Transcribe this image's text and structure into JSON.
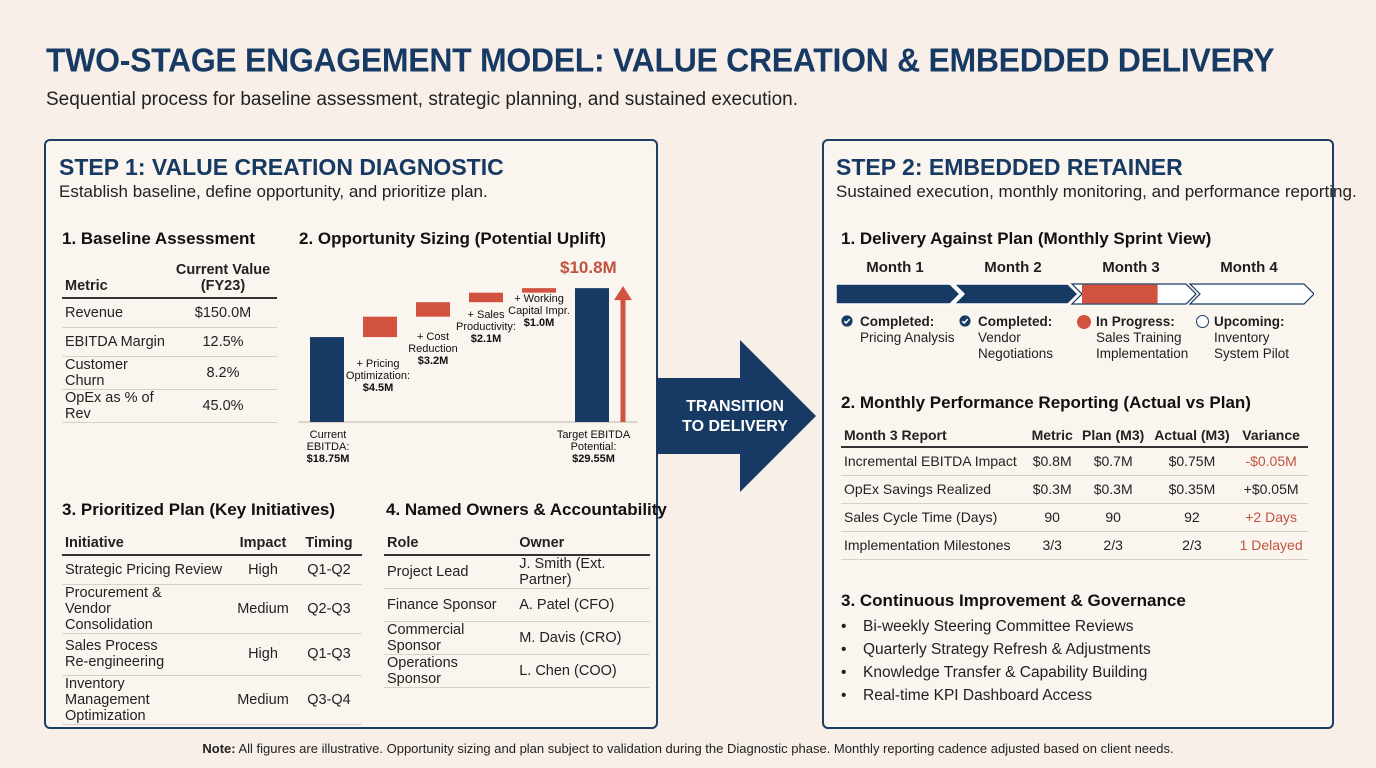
{
  "header": {
    "title": "TWO-STAGE ENGAGEMENT MODEL: VALUE CREATION & EMBEDDED DELIVERY",
    "subtitle": "Sequential process for baseline assessment, strategic planning, and sustained execution."
  },
  "step1": {
    "title": "STEP 1: VALUE CREATION DIAGNOSTIC",
    "subtitle": "Establish baseline, define opportunity, and prioritize plan.",
    "baseline": {
      "heading": "1. Baseline Assessment",
      "columns": [
        "Metric",
        "Current Value (FY23)"
      ],
      "rows": [
        [
          "Revenue",
          "$150.0M"
        ],
        [
          "EBITDA Margin",
          "12.5%"
        ],
        [
          "Customer Churn",
          "8.2%"
        ],
        [
          "OpEx as % of Rev",
          "45.0%"
        ]
      ]
    },
    "opportunity": {
      "heading": "2. Opportunity Sizing (Potential Uplift)",
      "total_label": "$10.8M",
      "start_label": "Current EBITDA:",
      "start_value": "$18.75M",
      "end_label": "Target EBITDA Potential:",
      "end_value": "$29.55M"
    },
    "plan": {
      "heading": "3. Prioritized Plan (Key Initiatives)",
      "columns": [
        "Initiative",
        "Impact",
        "Timing"
      ],
      "rows": [
        [
          "Strategic Pricing Review",
          "High",
          "Q1-Q2"
        ],
        [
          "Procurement & Vendor Consolidation",
          "Medium",
          "Q2-Q3"
        ],
        [
          "Sales Process Re-engineering",
          "High",
          "Q1-Q3"
        ],
        [
          "Inventory Management Optimization",
          "Medium",
          "Q3-Q4"
        ]
      ]
    },
    "owners": {
      "heading": "4. Named Owners & Accountability",
      "columns": [
        "Role",
        "Owner"
      ],
      "rows": [
        [
          "Project Lead",
          "J. Smith (Ext. Partner)"
        ],
        [
          "Finance Sponsor",
          "A. Patel (CFO)"
        ],
        [
          "Commercial Sponsor",
          "M. Davis (CRO)"
        ],
        [
          "Operations Sponsor",
          "L. Chen (COO)"
        ]
      ]
    }
  },
  "chart_data": {
    "type": "bar",
    "subtype": "waterfall",
    "title": "2. Opportunity Sizing (Potential Uplift)",
    "categories": [
      "Current EBITDA",
      "+ Pricing Optimization",
      "+ Cost Reduction",
      "+ Sales Productivity",
      "+ Working Capital Impr.",
      "Target EBITDA Potential"
    ],
    "values": [
      18.75,
      4.5,
      3.2,
      2.1,
      1.0,
      29.55
    ],
    "value_labels": [
      "$18.75M",
      "$4.5M",
      "$3.2M",
      "$2.1M",
      "$1.0M",
      "$29.55M"
    ],
    "total_uplift": 10.8,
    "colors": {
      "total": "#163a63",
      "increment": "#d1533f"
    }
  },
  "transition": {
    "line1": "TRANSITION",
    "line2": "TO DELIVERY"
  },
  "step2": {
    "title": "STEP 2: EMBEDDED RETAINER",
    "subtitle": "Sustained execution, monthly monitoring, and performance reporting.",
    "delivery": {
      "heading": "1. Delivery Against Plan (Monthly Sprint View)",
      "months": [
        "Month 1",
        "Month 2",
        "Month 3",
        "Month 4"
      ],
      "month3_progress": 0.7,
      "statuses": [
        {
          "state": "Completed:",
          "text": "Pricing Analysis"
        },
        {
          "state": "Completed:",
          "text": "Vendor Negotiations"
        },
        {
          "state": "In Progress:",
          "text": "Sales Training Implementation"
        },
        {
          "state": "Upcoming:",
          "text": "Inventory System Pilot"
        }
      ]
    },
    "reporting": {
      "heading": "2. Monthly Performance Reporting (Actual vs Plan)",
      "columns": [
        "Month 3 Report",
        "Metric",
        "Plan (M3)",
        "Actual (M3)",
        "Variance"
      ],
      "rows": [
        [
          "Incremental EBITDA Impact",
          "$0.8M",
          "$0.7M",
          "$0.75M",
          "-$0.05M"
        ],
        [
          "OpEx Savings Realized",
          "$0.3M",
          "$0.3M",
          "$0.35M",
          "+$0.05M"
        ],
        [
          "Sales Cycle Time (Days)",
          "90",
          "90",
          "92",
          "+2 Days"
        ],
        [
          "Implementation Milestones",
          "3/3",
          "2/3",
          "2/3",
          "1 Delayed"
        ]
      ]
    },
    "governance": {
      "heading": "3. Continuous Improvement & Governance",
      "items": [
        "Bi-weekly Steering Committee Reviews",
        "Quarterly Strategy Refresh & Adjustments",
        "Knowledge Transfer & Capability Building",
        "Real-time KPI Dashboard Access"
      ]
    }
  },
  "note": {
    "label": "Note:",
    "text": " All figures are illustrative. Opportunity sizing and plan subject to validation during the Diagnostic phase. Monthly reporting cadence adjusted based on client needs."
  }
}
